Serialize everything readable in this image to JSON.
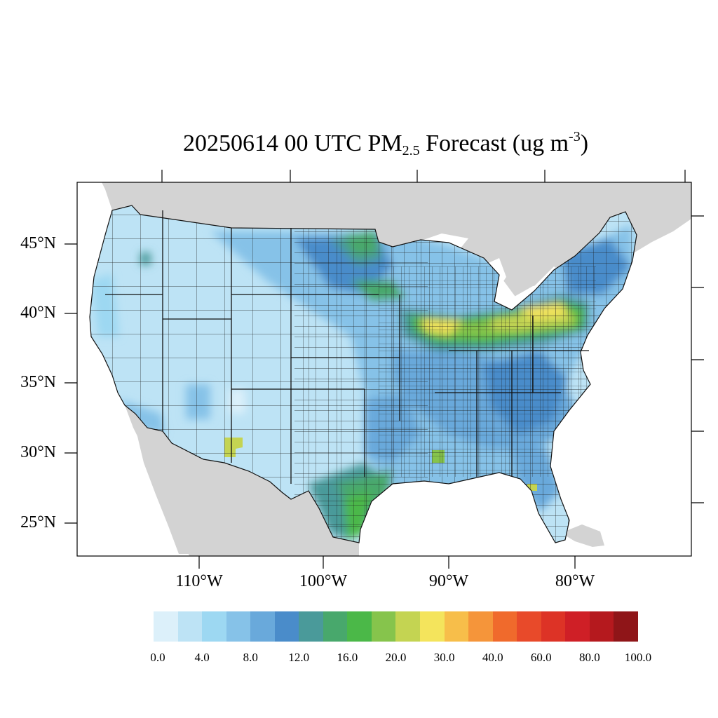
{
  "title": {
    "prefix": "20250614 00 UTC PM",
    "subscript": "2.5",
    "middle": " Forecast (ug m",
    "superscript": "-3",
    "suffix": ")"
  },
  "axes": {
    "lat_labels": [
      "45°N",
      "40°N",
      "35°N",
      "30°N",
      "25°N"
    ],
    "lon_labels": [
      "110°W",
      "100°W",
      "90°W",
      "80°W"
    ]
  },
  "colors": {
    "land_outside": "#d3d3d3",
    "water": "#ffffff",
    "county_edge": "#1a1a1a"
  },
  "colorbar": {
    "colors": [
      "#dcf0fa",
      "#bde3f5",
      "#9dd8f2",
      "#86c2e8",
      "#69a9db",
      "#4a8cca",
      "#4a9a9a",
      "#48a86c",
      "#4bb848",
      "#86c44c",
      "#c4d452",
      "#f4e45c",
      "#f7be4a",
      "#f5953a",
      "#f06a2c",
      "#e84a2a",
      "#dd3326",
      "#cf1f26",
      "#b5191e",
      "#8f1518"
    ],
    "labels": [
      "0.0",
      "4.0",
      "8.0",
      "12.0",
      "16.0",
      "20.0",
      "30.0",
      "40.0",
      "60.0",
      "80.0",
      "100.0"
    ]
  },
  "map": {
    "region": "CONUS",
    "hotspots": [
      {
        "name": "ohio-valley-band",
        "level": "20.0-30.0"
      },
      {
        "name": "texas-gulf-coast",
        "level": "16.0-20.0"
      },
      {
        "name": "new-mexico-county",
        "level": "20.0"
      },
      {
        "name": "dakotas-minnesota",
        "level": "16.0"
      }
    ]
  }
}
